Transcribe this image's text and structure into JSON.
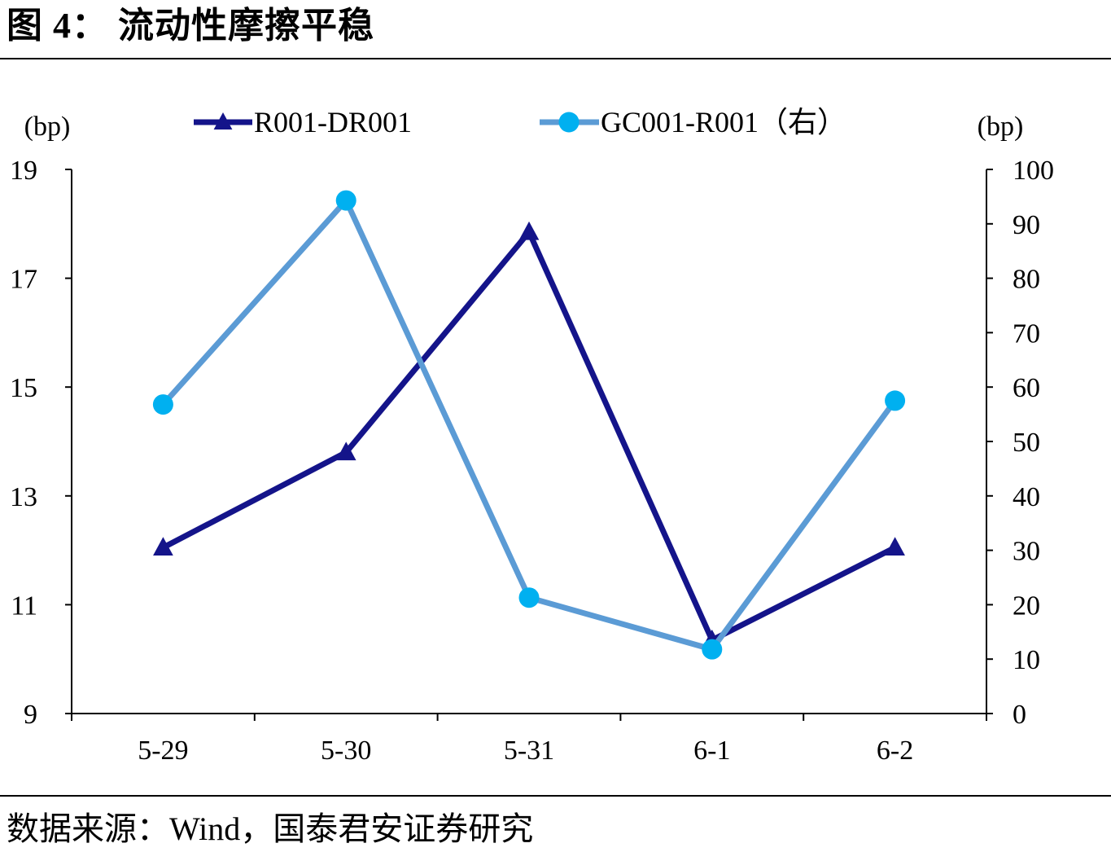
{
  "figure": {
    "title": "图 4：  流动性摩擦平稳",
    "source": "数据来源：Wind，国泰君安证券研究"
  },
  "chart_data": {
    "type": "line",
    "categories": [
      "5-29",
      "5-30",
      "5-31",
      "6-1",
      "6-2"
    ],
    "y_left": {
      "unit_label": "(bp)",
      "ylim": [
        9,
        19
      ],
      "ticks": [
        9,
        11,
        13,
        15,
        17,
        19
      ]
    },
    "y_right": {
      "unit_label": "(bp)",
      "ylim": [
        0,
        100
      ],
      "ticks": [
        0,
        10,
        20,
        30,
        40,
        50,
        60,
        70,
        80,
        90,
        100
      ]
    },
    "series": [
      {
        "name": "R001-DR001",
        "axis": "left",
        "marker": "triangle",
        "color": "#14148a",
        "values": [
          12.05,
          13.8,
          17.85,
          10.35,
          12.05
        ]
      },
      {
        "name": "GC001-R001（右）",
        "axis": "right",
        "marker": "circle",
        "color": "#5b9bd5",
        "marker_color": "#00b0f0",
        "values": [
          56.8,
          94.3,
          21.3,
          11.8,
          57.5
        ]
      }
    ],
    "legend_position": "top",
    "grid": false
  }
}
